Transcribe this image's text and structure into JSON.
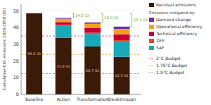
{
  "chart_data": {
    "type": "bar",
    "stacked": true,
    "categories": [
      "Baseline",
      "Action",
      "Transformation",
      "Breakthrough"
    ],
    "series": [
      {
        "name": "Residual emissions",
        "color": "#3b1a08",
        "values": [
          48.6,
          33.8,
          28.7,
          22.5
        ],
        "value_labels": [
          "48.6 Gt",
          "33.8 Gt",
          "28.7 Gt",
          "22.5 Gt"
        ]
      },
      {
        "name": "SAF",
        "color": "#1aa8b8",
        "values": [
          0,
          7.5,
          7.5,
          9.0
        ]
      },
      {
        "name": "ZEP",
        "color": "#e8452a",
        "values": [
          0,
          0.5,
          0.8,
          1.0
        ]
      },
      {
        "name": "Technical efficiency",
        "color": "#c8003a",
        "values": [
          0,
          1.5,
          2.8,
          3.5
        ]
      },
      {
        "name": "Operational efficiency",
        "color": "#f5a020",
        "values": [
          0,
          2.0,
          2.5,
          3.2
        ]
      },
      {
        "name": "Demand change",
        "color": "#7030a0",
        "values": [
          0,
          0.5,
          0.8,
          1.4
        ]
      }
    ],
    "legend_title": "Emissions mitigated by:",
    "reference_lines": [
      {
        "name": "2°C Budget",
        "value": 35.0,
        "color": "#e8508c"
      },
      {
        "name": "1.75°C Budget",
        "value": 24.0,
        "color": "#f5a020"
      },
      {
        "name": "1.5°C Budget",
        "value": 12.5,
        "color": "#70b84a"
      }
    ],
    "bracket_to": 48.6,
    "brackets": [
      {
        "category": "Action",
        "label": "14.8 Gt",
        "color": "#70b84a"
      },
      {
        "category": "Transformation",
        "label": "19.9 Gt",
        "color": "#70b84a"
      },
      {
        "category": "Breakthrough",
        "label": "26.1 Gt",
        "color": "#70b84a"
      }
    ],
    "y_label": "Cumulative CO₂ emissions 2020-2050 (Gt)",
    "ylim": [
      0,
      54
    ],
    "yticks": [
      0,
      10,
      20,
      30,
      40,
      50
    ],
    "grid": true,
    "legend": "right"
  }
}
